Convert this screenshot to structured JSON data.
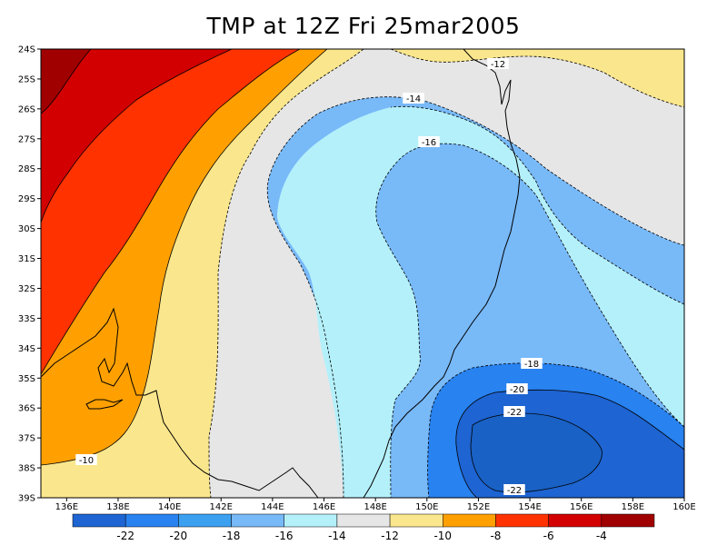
{
  "title": "TMP at 12Z Fri 25mar2005",
  "map": {
    "lat_labels": [
      "24S",
      "25S",
      "26S",
      "27S",
      "28S",
      "29S",
      "30S",
      "31S",
      "32S",
      "33S",
      "34S",
      "35S",
      "36S",
      "37S",
      "38S",
      "39S"
    ],
    "lon_labels": [
      "136E",
      "138E",
      "140E",
      "142E",
      "144E",
      "146E",
      "148E",
      "150E",
      "152E",
      "154E",
      "156E",
      "158E",
      "160E"
    ],
    "contour_labels": [
      "-12",
      "-14",
      "-16",
      "-18",
      "-20",
      "-22",
      "-22",
      "-10"
    ]
  },
  "colorbar": {
    "labels": [
      "-22",
      "-20",
      "-18",
      "-16",
      "-14",
      "-12",
      "-10",
      "-8",
      "-6",
      "-4"
    ],
    "colors": [
      "#1e64d2",
      "#2882f0",
      "#3ca0f0",
      "#78b9f8",
      "#b4f0fa",
      "#e6e6e6",
      "#fae68c",
      "#ffa000",
      "#ff3200",
      "#d20000",
      "#a00000"
    ]
  },
  "fill_colors": {
    "darkblue": "#1e64d2",
    "blue": "#2882f0",
    "lightblue": "#78b9f8",
    "cyan": "#b4f0fa",
    "gray": "#e6e6e6",
    "yellow": "#fae68c",
    "orange": "#ffa000",
    "red_orange": "#ff3200",
    "red": "#d20000",
    "darkred": "#a00000"
  }
}
